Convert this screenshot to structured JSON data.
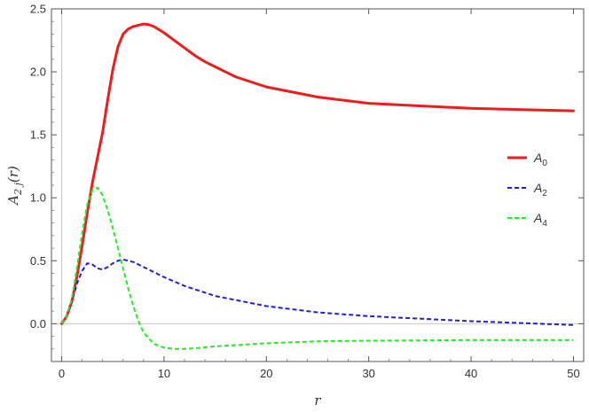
{
  "chart_data": {
    "type": "line",
    "xlabel": "r",
    "ylabel": "A",
    "ylabel_sub": "2 j",
    "ylabel_arg": "(r)",
    "xlim": [
      -1,
      51
    ],
    "ylim": [
      -0.3,
      2.5
    ],
    "x_ticks": [
      0,
      10,
      20,
      30,
      40,
      50
    ],
    "x_tick_labels": [
      "0",
      "10",
      "20",
      "30",
      "40",
      "50"
    ],
    "y_ticks": [
      0.0,
      0.5,
      1.0,
      1.5,
      2.0,
      2.5
    ],
    "y_tick_labels": [
      "0.0",
      "0.5",
      "1.0",
      "1.5",
      "2.0",
      "2.5"
    ],
    "grid": false,
    "legend_position": "right",
    "series": [
      {
        "name": "A",
        "name_sub": "0",
        "color": "#ee1c1c",
        "style": "solid",
        "x": [
          0,
          0.5,
          1,
          1.5,
          2,
          2.5,
          3,
          3.5,
          4,
          4.5,
          5,
          5.5,
          6,
          6.5,
          7,
          7.5,
          8,
          8.5,
          9,
          10,
          11,
          12,
          13,
          14,
          15,
          17,
          20,
          25,
          30,
          35,
          40,
          45,
          50
        ],
        "y": [
          0,
          0.06,
          0.18,
          0.38,
          0.62,
          0.88,
          1.12,
          1.32,
          1.52,
          1.78,
          2.02,
          2.2,
          2.3,
          2.34,
          2.36,
          2.37,
          2.38,
          2.375,
          2.36,
          2.31,
          2.25,
          2.19,
          2.13,
          2.08,
          2.04,
          1.96,
          1.88,
          1.8,
          1.75,
          1.73,
          1.71,
          1.7,
          1.69
        ]
      },
      {
        "name": "A",
        "name_sub": "2",
        "color": "#1f1fdd",
        "style": "dashed",
        "x": [
          0,
          0.5,
          1,
          1.5,
          2,
          2.5,
          3,
          3.5,
          4,
          4.5,
          5,
          5.5,
          6,
          6.5,
          7,
          7.5,
          8,
          9,
          10,
          12,
          15,
          20,
          25,
          30,
          35,
          40,
          45,
          50
        ],
        "y": [
          0,
          0.06,
          0.18,
          0.32,
          0.42,
          0.48,
          0.47,
          0.44,
          0.43,
          0.45,
          0.48,
          0.5,
          0.51,
          0.5,
          0.49,
          0.47,
          0.45,
          0.41,
          0.37,
          0.3,
          0.22,
          0.14,
          0.09,
          0.06,
          0.04,
          0.02,
          0.005,
          -0.01
        ]
      },
      {
        "name": "A",
        "name_sub": "4",
        "color": "#22ee22",
        "style": "dashed",
        "x": [
          0,
          0.5,
          1,
          1.5,
          2,
          2.5,
          3,
          3.5,
          4,
          4.5,
          5,
          5.5,
          6,
          6.5,
          7,
          7.5,
          8,
          9,
          10,
          11,
          12,
          13,
          15,
          20,
          25,
          30,
          40,
          50
        ],
        "y": [
          0,
          0.06,
          0.2,
          0.45,
          0.72,
          0.95,
          1.06,
          1.08,
          1.02,
          0.9,
          0.76,
          0.6,
          0.44,
          0.28,
          0.14,
          0.02,
          -0.07,
          -0.16,
          -0.19,
          -0.2,
          -0.2,
          -0.195,
          -0.18,
          -0.155,
          -0.14,
          -0.135,
          -0.13,
          -0.13
        ]
      }
    ]
  }
}
